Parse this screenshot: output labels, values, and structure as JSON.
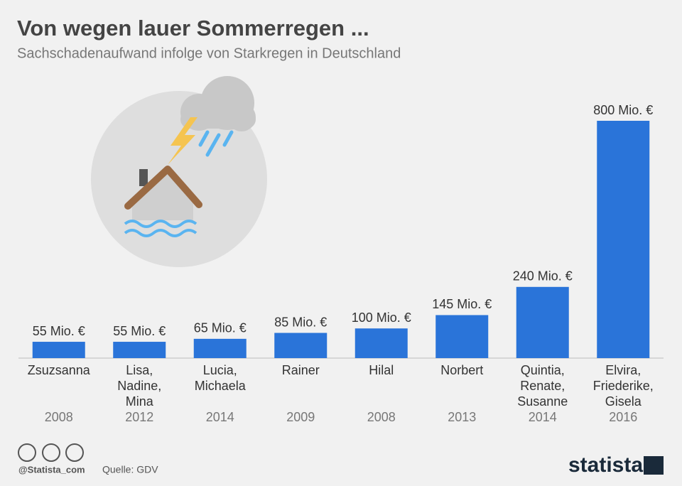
{
  "chart_data": {
    "type": "bar",
    "title": "Von wegen lauer Sommerregen ...",
    "subtitle": "Sachschadenaufwand infolge von Starkregen in Deutschland",
    "categories": [
      "Zsuzsanna",
      "Lisa, Nadine, Mina",
      "Lucia, Michaela",
      "Rainer",
      "Hilal",
      "Norbert",
      "Quintia, Renate, Susanne",
      "Elvira, Friederike, Gisela"
    ],
    "years": [
      "2008",
      "2012",
      "2014",
      "2009",
      "2008",
      "2013",
      "2014",
      "2016"
    ],
    "values": [
      55,
      55,
      65,
      85,
      100,
      145,
      240,
      800
    ],
    "value_labels": [
      "55 Mio. €",
      "55 Mio. €",
      "65 Mio. €",
      "85 Mio. €",
      "100 Mio. €",
      "145 Mio. €",
      "240 Mio. €",
      "800 Mio. €"
    ],
    "color": "#2a74d9"
  },
  "footer": {
    "credit": "@Statista_com",
    "source": "Quelle: GDV",
    "brand": "statista"
  }
}
